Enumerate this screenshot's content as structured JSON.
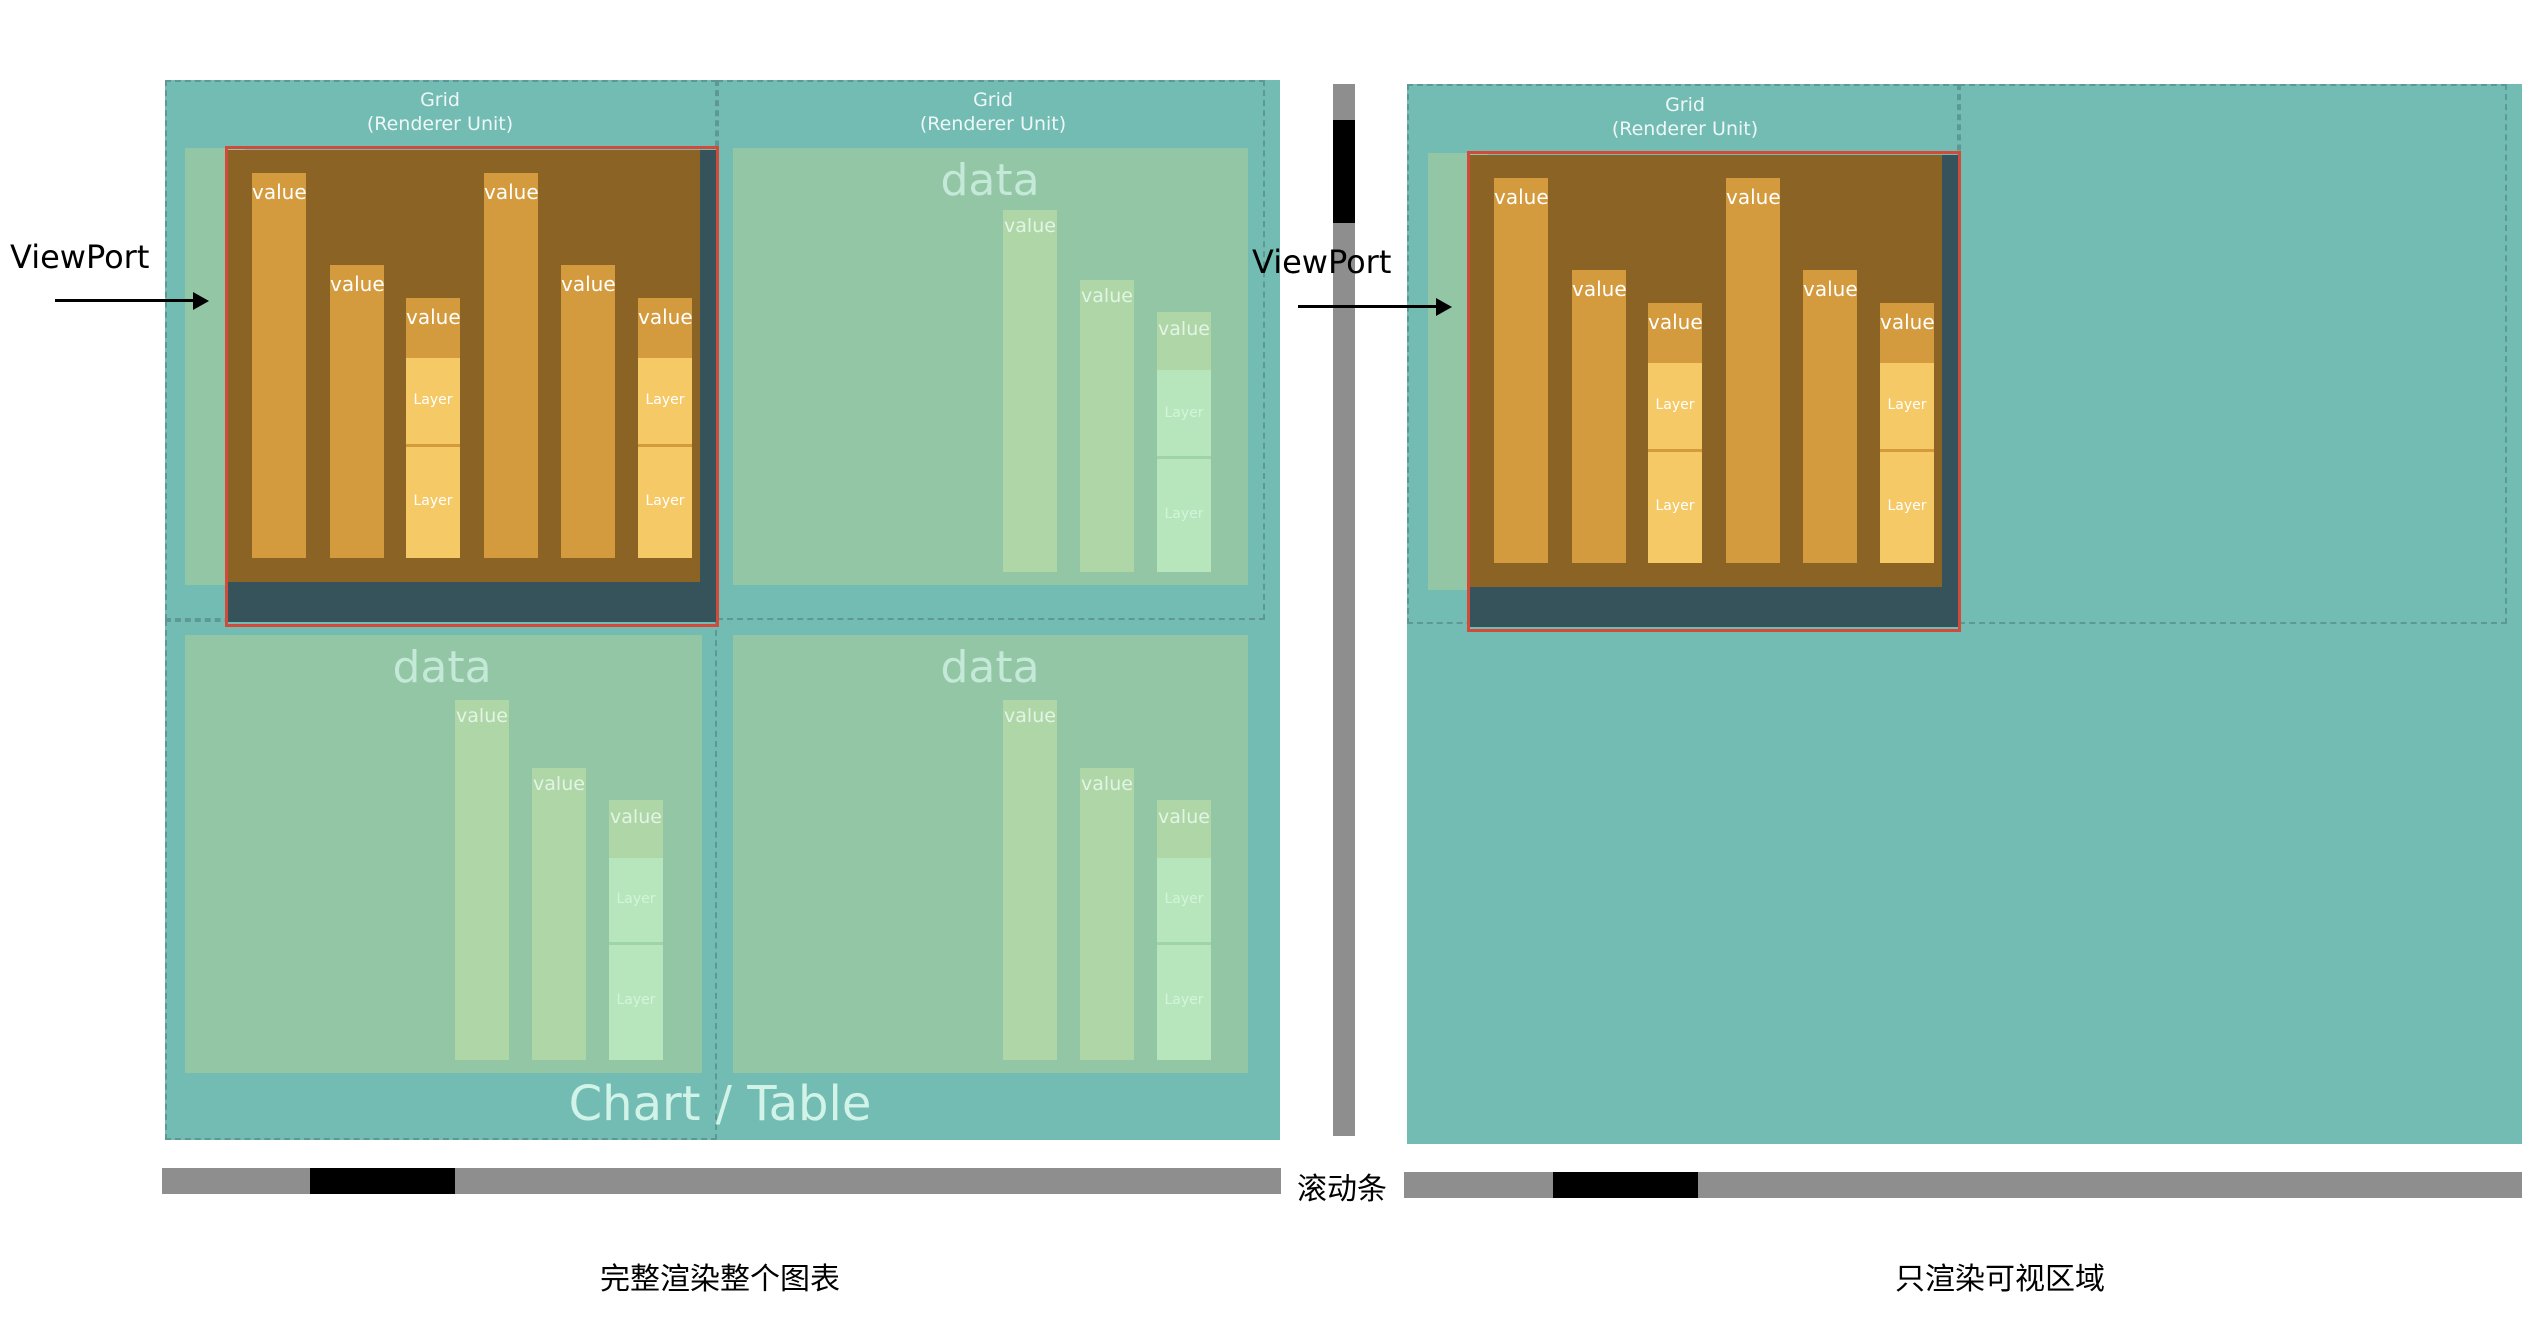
{
  "grid_label_line1": "Grid",
  "grid_label_line2": "(Renderer Unit)",
  "data_label": "data",
  "value_label": "value",
  "layer_label": "Layer",
  "chart_title": "Chart / Table",
  "viewport_label": "ViewPort",
  "scrollbar_label": "滚动条",
  "left_caption": "完整渲染整个图表",
  "right_caption": "只渲染可视区域",
  "colors": {
    "canvas_teal": "#73bcb4",
    "light_panel": "#92c6a4",
    "dark_panel": "#8b6425",
    "bar_orange": "#d49a3e",
    "layer_yellow": "#f5c966",
    "viewport_border": "#d24a3a",
    "scroll_track": "#8e8e8e",
    "scroll_thumb": "#000000"
  }
}
